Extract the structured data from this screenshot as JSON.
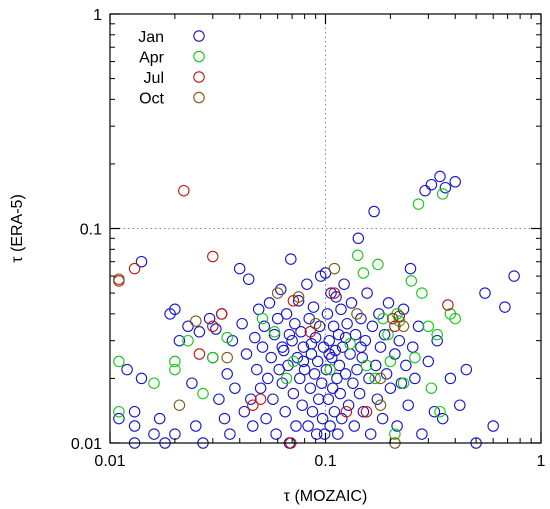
{
  "chart_data": {
    "type": "scatter",
    "xlabel": "τ (MOZAIC)",
    "ylabel": "τ (ERA-5)",
    "x_scale": "log",
    "y_scale": "log",
    "xlim": [
      0.01,
      1
    ],
    "ylim": [
      0.01,
      1
    ],
    "x_ticks": [
      {
        "value": 0.01,
        "label": "0.01"
      },
      {
        "value": 0.1,
        "label": "0.1"
      },
      {
        "value": 1,
        "label": "1"
      }
    ],
    "y_ticks": [
      {
        "value": 0.01,
        "label": "0.01"
      },
      {
        "value": 0.1,
        "label": "0.1"
      },
      {
        "value": 1,
        "label": "1"
      }
    ],
    "reference_lines": {
      "x": 0.1,
      "y": 0.1,
      "style": "dotted"
    },
    "marker": "open-circle",
    "legend_position": "top-left",
    "series": [
      {
        "name": "Jan",
        "color": "#1414c8",
        "points": [
          [
            0.011,
            0.013
          ],
          [
            0.012,
            0.022
          ],
          [
            0.013,
            0.01
          ],
          [
            0.013,
            0.012
          ],
          [
            0.013,
            0.014
          ],
          [
            0.014,
            0.07
          ],
          [
            0.014,
            0.02
          ],
          [
            0.016,
            0.011
          ],
          [
            0.017,
            0.013
          ],
          [
            0.018,
            0.01
          ],
          [
            0.019,
            0.04
          ],
          [
            0.02,
            0.042
          ],
          [
            0.02,
            0.011
          ],
          [
            0.021,
            0.03
          ],
          [
            0.023,
            0.035
          ],
          [
            0.024,
            0.019
          ],
          [
            0.025,
            0.012
          ],
          [
            0.026,
            0.033
          ],
          [
            0.027,
            0.01
          ],
          [
            0.029,
            0.038
          ],
          [
            0.03,
            0.025
          ],
          [
            0.031,
            0.034
          ],
          [
            0.032,
            0.016
          ],
          [
            0.033,
            0.04
          ],
          [
            0.034,
            0.013
          ],
          [
            0.035,
            0.021
          ],
          [
            0.036,
            0.011
          ],
          [
            0.037,
            0.03
          ],
          [
            0.038,
            0.018
          ],
          [
            0.04,
            0.065
          ],
          [
            0.041,
            0.036
          ],
          [
            0.042,
            0.014
          ],
          [
            0.043,
            0.026
          ],
          [
            0.044,
            0.058
          ],
          [
            0.045,
            0.016
          ],
          [
            0.046,
            0.012
          ],
          [
            0.047,
            0.031
          ],
          [
            0.048,
            0.022
          ],
          [
            0.049,
            0.042
          ],
          [
            0.05,
            0.018
          ],
          [
            0.051,
            0.028
          ],
          [
            0.052,
            0.035
          ],
          [
            0.053,
            0.013
          ],
          [
            0.054,
            0.02
          ],
          [
            0.055,
            0.045
          ],
          [
            0.056,
            0.025
          ],
          [
            0.057,
            0.016
          ],
          [
            0.058,
            0.032
          ],
          [
            0.059,
            0.011
          ],
          [
            0.06,
            0.038
          ],
          [
            0.061,
            0.022
          ],
          [
            0.062,
            0.052
          ],
          [
            0.063,
            0.019
          ],
          [
            0.064,
            0.027
          ],
          [
            0.065,
            0.014
          ],
          [
            0.066,
            0.04
          ],
          [
            0.067,
            0.023
          ],
          [
            0.068,
            0.01
          ],
          [
            0.069,
            0.072
          ],
          [
            0.07,
            0.03
          ],
          [
            0.071,
            0.017
          ],
          [
            0.072,
            0.036
          ],
          [
            0.073,
            0.012
          ],
          [
            0.074,
            0.025
          ],
          [
            0.075,
            0.046
          ],
          [
            0.076,
            0.02
          ],
          [
            0.077,
            0.033
          ],
          [
            0.078,
            0.015
          ],
          [
            0.079,
            0.028
          ],
          [
            0.08,
            0.022
          ],
          [
            0.082,
            0.055
          ],
          [
            0.083,
            0.012
          ],
          [
            0.084,
            0.038
          ],
          [
            0.085,
            0.018
          ],
          [
            0.086,
            0.026
          ],
          [
            0.087,
            0.014
          ],
          [
            0.088,
            0.043
          ],
          [
            0.089,
            0.021
          ],
          [
            0.09,
            0.031
          ],
          [
            0.091,
            0.011
          ],
          [
            0.092,
            0.024
          ],
          [
            0.093,
            0.016
          ],
          [
            0.094,
            0.035
          ],
          [
            0.095,
            0.06
          ],
          [
            0.096,
            0.019
          ],
          [
            0.097,
            0.013
          ],
          [
            0.098,
            0.028
          ],
          [
            0.099,
            0.011
          ],
          [
            0.1,
            0.062
          ],
          [
            0.101,
            0.022
          ],
          [
            0.102,
            0.04
          ],
          [
            0.103,
            0.016
          ],
          [
            0.104,
            0.03
          ],
          [
            0.105,
            0.012
          ],
          [
            0.106,
            0.05
          ],
          [
            0.107,
            0.025
          ],
          [
            0.108,
            0.018
          ],
          [
            0.109,
            0.035
          ],
          [
            0.11,
            0.014
          ],
          [
            0.111,
            0.027
          ],
          [
            0.112,
            0.048
          ],
          [
            0.113,
            0.02
          ],
          [
            0.114,
            0.011
          ],
          [
            0.115,
            0.032
          ],
          [
            0.116,
            0.023
          ],
          [
            0.117,
            0.017
          ],
          [
            0.118,
            0.042
          ],
          [
            0.119,
            0.013
          ],
          [
            0.12,
            0.028
          ],
          [
            0.122,
            0.055
          ],
          [
            0.124,
            0.021
          ],
          [
            0.126,
            0.036
          ],
          [
            0.128,
            0.015
          ],
          [
            0.13,
            0.026
          ],
          [
            0.132,
            0.045
          ],
          [
            0.134,
            0.019
          ],
          [
            0.136,
            0.012
          ],
          [
            0.138,
            0.032
          ],
          [
            0.14,
            0.022
          ],
          [
            0.142,
            0.09
          ],
          [
            0.144,
            0.017
          ],
          [
            0.146,
            0.038
          ],
          [
            0.148,
            0.025
          ],
          [
            0.15,
            0.014
          ],
          [
            0.153,
            0.03
          ],
          [
            0.156,
            0.05
          ],
          [
            0.159,
            0.02
          ],
          [
            0.162,
            0.011
          ],
          [
            0.165,
            0.035
          ],
          [
            0.168,
            0.12
          ],
          [
            0.171,
            0.023
          ],
          [
            0.174,
            0.016
          ],
          [
            0.177,
            0.04
          ],
          [
            0.18,
            0.028
          ],
          [
            0.184,
            0.013
          ],
          [
            0.188,
            0.032
          ],
          [
            0.192,
            0.021
          ],
          [
            0.196,
            0.045
          ],
          [
            0.2,
            0.018
          ],
          [
            0.205,
            0.038
          ],
          [
            0.21,
            0.026
          ],
          [
            0.215,
            0.012
          ],
          [
            0.22,
            0.03
          ],
          [
            0.225,
            0.019
          ],
          [
            0.23,
            0.042
          ],
          [
            0.236,
            0.023
          ],
          [
            0.242,
            0.015
          ],
          [
            0.248,
            0.065
          ],
          [
            0.254,
            0.028
          ],
          [
            0.26,
            0.02
          ],
          [
            0.27,
            0.035
          ],
          [
            0.28,
            0.011
          ],
          [
            0.29,
            0.15
          ],
          [
            0.3,
            0.024
          ],
          [
            0.31,
            0.16
          ],
          [
            0.32,
            0.014
          ],
          [
            0.33,
            0.03
          ],
          [
            0.34,
            0.175
          ],
          [
            0.35,
            0.013
          ],
          [
            0.36,
            0.155
          ],
          [
            0.38,
            0.02
          ],
          [
            0.4,
            0.165
          ],
          [
            0.42,
            0.015
          ],
          [
            0.45,
            0.022
          ],
          [
            0.5,
            0.01
          ],
          [
            0.55,
            0.05
          ],
          [
            0.6,
            0.012
          ],
          [
            0.68,
            0.043
          ],
          [
            0.75,
            0.06
          ],
          [
            0.068,
            0.032
          ],
          [
            0.086,
            0.029
          ],
          [
            0.104,
            0.026
          ],
          [
            0.124,
            0.031
          ],
          [
            0.146,
            0.028
          ],
          [
            0.063,
            0.028
          ],
          [
            0.079,
            0.024
          ]
        ]
      },
      {
        "name": "Apr",
        "color": "#14c814",
        "points": [
          [
            0.011,
            0.024
          ],
          [
            0.011,
            0.014
          ],
          [
            0.016,
            0.019
          ],
          [
            0.02,
            0.024
          ],
          [
            0.02,
            0.022
          ],
          [
            0.023,
            0.03
          ],
          [
            0.027,
            0.017
          ],
          [
            0.03,
            0.025
          ],
          [
            0.035,
            0.031
          ],
          [
            0.051,
            0.038
          ],
          [
            0.058,
            0.033
          ],
          [
            0.066,
            0.02
          ],
          [
            0.071,
            0.024
          ],
          [
            0.105,
            0.022
          ],
          [
            0.13,
            0.029
          ],
          [
            0.141,
            0.075
          ],
          [
            0.15,
            0.062
          ],
          [
            0.175,
            0.068
          ],
          [
            0.185,
            0.038
          ],
          [
            0.195,
            0.032
          ],
          [
            0.2,
            0.024
          ],
          [
            0.21,
            0.011
          ],
          [
            0.215,
            0.04
          ],
          [
            0.22,
            0.037
          ],
          [
            0.23,
            0.019
          ],
          [
            0.25,
            0.057
          ],
          [
            0.26,
            0.025
          ],
          [
            0.27,
            0.13
          ],
          [
            0.28,
            0.05
          ],
          [
            0.3,
            0.035
          ],
          [
            0.31,
            0.018
          ],
          [
            0.33,
            0.032
          ],
          [
            0.34,
            0.014
          ],
          [
            0.35,
            0.145
          ],
          [
            0.38,
            0.04
          ],
          [
            0.4,
            0.038
          ],
          [
            0.17,
            0.02
          ],
          [
            0.155,
            0.023
          ]
        ]
      },
      {
        "name": "Jul",
        "color": "#c01414",
        "points": [
          [
            0.011,
            0.057
          ],
          [
            0.013,
            0.065
          ],
          [
            0.022,
            0.15
          ],
          [
            0.026,
            0.026
          ],
          [
            0.03,
            0.074
          ],
          [
            0.03,
            0.035
          ],
          [
            0.033,
            0.04
          ],
          [
            0.046,
            0.015
          ],
          [
            0.069,
            0.01
          ],
          [
            0.071,
            0.046
          ],
          [
            0.085,
            0.033
          ],
          [
            0.11,
            0.05
          ],
          [
            0.125,
            0.014
          ],
          [
            0.21,
            0.035
          ],
          [
            0.22,
            0.039
          ],
          [
            0.37,
            0.044
          ],
          [
            0.05,
            0.016
          ],
          [
            0.155,
            0.014
          ]
        ]
      },
      {
        "name": "Oct",
        "color": "#7a5a14",
        "points": [
          [
            0.011,
            0.058
          ],
          [
            0.021,
            0.015
          ],
          [
            0.025,
            0.037
          ],
          [
            0.035,
            0.025
          ],
          [
            0.06,
            0.05
          ],
          [
            0.075,
            0.048
          ],
          [
            0.09,
            0.036
          ],
          [
            0.11,
            0.065
          ],
          [
            0.14,
            0.04
          ],
          [
            0.18,
            0.02
          ],
          [
            0.205,
            0.038
          ],
          [
            0.21,
            0.01
          ],
          [
            0.23,
            0.035
          ],
          [
            0.18,
            0.015
          ]
        ]
      }
    ]
  }
}
